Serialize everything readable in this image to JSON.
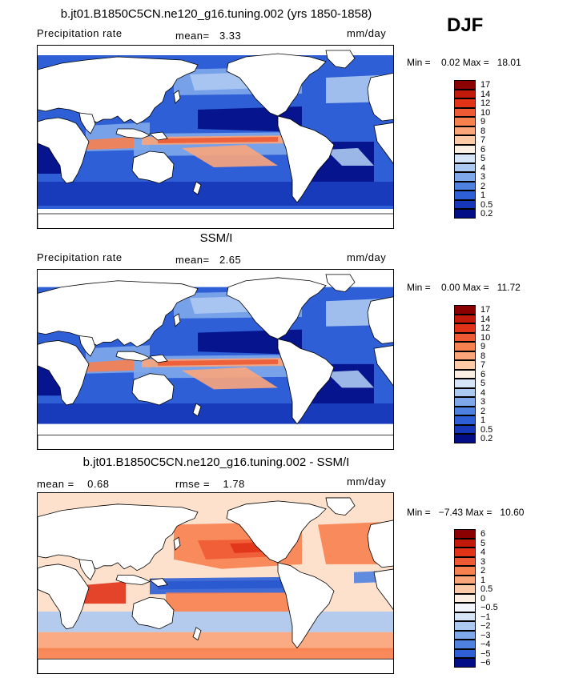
{
  "season": "DJF",
  "panels": [
    {
      "title": "b.jt01.B1850C5CN.ne120_g16.tuning.002 (yrs 1850-1858)",
      "left_label": "Precipitation rate",
      "mid_label": "mean=   3.33",
      "units": "mm/day",
      "minmax": "Min =    0.02 Max =   18.01",
      "kind": "model",
      "colorbar_labels": [
        "17",
        "14",
        "12",
        "10",
        "9",
        "8",
        "7",
        "6",
        "5",
        "4",
        "3",
        "2",
        "1",
        "0.5",
        "0.2"
      ],
      "colorbar_colors": [
        "#8b0000",
        "#c11a0a",
        "#e03318",
        "#ee5a33",
        "#f7814f",
        "#fba57b",
        "#fdcaa8",
        "#fbeee3",
        "#d7e5f8",
        "#acc9f1",
        "#7fa8ea",
        "#4f82e0",
        "#2e5fd6",
        "#1537b8",
        "#020d86"
      ]
    },
    {
      "title": "SSM/I",
      "left_label": "Precipitation rate",
      "mid_label": "mean=   2.65",
      "units": "mm/day",
      "minmax": "Min =    0.00 Max =   11.72",
      "kind": "obs",
      "colorbar_labels": [
        "17",
        "14",
        "12",
        "10",
        "9",
        "8",
        "7",
        "6",
        "5",
        "4",
        "3",
        "2",
        "1",
        "0.5",
        "0.2"
      ],
      "colorbar_colors": [
        "#8b0000",
        "#c11a0a",
        "#e03318",
        "#ee5a33",
        "#f7814f",
        "#fba57b",
        "#fdcaa8",
        "#fbeee3",
        "#d7e5f8",
        "#acc9f1",
        "#7fa8ea",
        "#4f82e0",
        "#2e5fd6",
        "#1537b8",
        "#020d86"
      ]
    },
    {
      "title": "b.jt01.B1850C5CN.ne120_g16.tuning.002 - SSM/I",
      "left_label": "mean =    0.68",
      "mid_label": "rmse =    1.78",
      "units": "mm/day",
      "minmax": "Min =   −7.43 Max =   10.60",
      "kind": "diff",
      "colorbar_labels": [
        "6",
        "5",
        "4",
        "3",
        "2",
        "1",
        "0.5",
        "0",
        "−0.5",
        "−1",
        "−2",
        "−3",
        "−4",
        "−5",
        "−6"
      ],
      "colorbar_colors": [
        "#8b0000",
        "#c11a0a",
        "#e03318",
        "#ee5a33",
        "#f7814f",
        "#fba57b",
        "#fdcaa8",
        "#fbeee3",
        "#f3f6fd",
        "#d7e5f8",
        "#acc9f1",
        "#7fa8ea",
        "#4f82e0",
        "#2e5fd6",
        "#020d86"
      ]
    }
  ]
}
